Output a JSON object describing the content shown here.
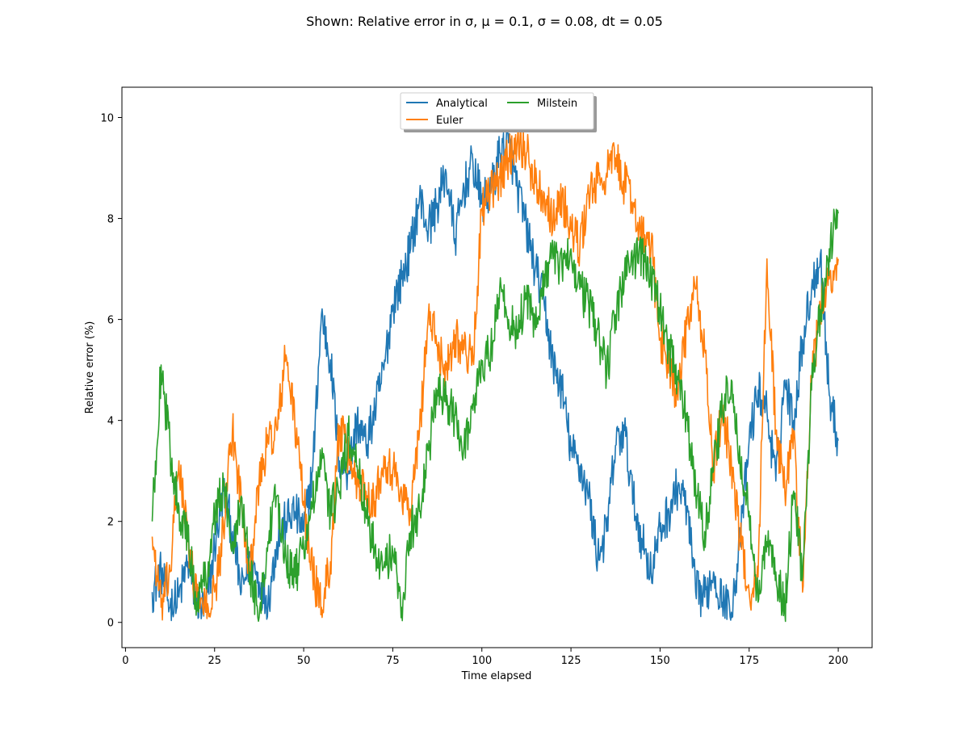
{
  "chart_data": {
    "type": "line",
    "title": "Shown: Relative error in σ, μ = 0.1, σ = 0.08, dt = 0.05",
    "xlabel": "Time elapsed",
    "ylabel": "Relative error (%)",
    "xlim": [
      -1.0,
      209.5
    ],
    "ylim": [
      -0.5,
      10.6
    ],
    "xticks": [
      0,
      25,
      50,
      75,
      100,
      125,
      150,
      175,
      200
    ],
    "yticks": [
      0,
      2,
      4,
      6,
      8,
      10
    ],
    "grid": false,
    "legend": {
      "placement": "upper-center",
      "columns": 2
    },
    "x": [
      7.5,
      10,
      12.5,
      15,
      17.5,
      20,
      22.5,
      25,
      27.5,
      30,
      32.5,
      35,
      37.5,
      40,
      42.5,
      45,
      47.5,
      50,
      52.5,
      55,
      57.5,
      60,
      62.5,
      65,
      67.5,
      70,
      72.5,
      75,
      77.5,
      80,
      82.5,
      85,
      87.5,
      90,
      92.5,
      95,
      97.5,
      100,
      102.5,
      105,
      107.5,
      110,
      112.5,
      115,
      117.5,
      120,
      122.5,
      125,
      127.5,
      130,
      132.5,
      135,
      137.5,
      140,
      142.5,
      145,
      147.5,
      150,
      152.5,
      155,
      157.5,
      160,
      162.5,
      165,
      167.5,
      170,
      172.5,
      175,
      177.5,
      180,
      182.5,
      185,
      187.5,
      190,
      192.5,
      195,
      197.5,
      200
    ],
    "series": [
      {
        "name": "Analytical",
        "color": "#1f77b4",
        "values": [
          0.6,
          1.0,
          0.3,
          0.5,
          1.2,
          0.4,
          0.2,
          1.5,
          2.6,
          1.8,
          0.6,
          1.3,
          0.8,
          0.4,
          1.6,
          2.0,
          2.2,
          1.8,
          3.0,
          6.1,
          5.2,
          3.2,
          3.0,
          4.0,
          3.5,
          4.2,
          5.0,
          6.3,
          6.8,
          7.4,
          8.4,
          7.8,
          8.3,
          8.9,
          7.6,
          8.6,
          9.1,
          8.3,
          8.5,
          9.3,
          9.5,
          8.6,
          7.8,
          7.0,
          6.3,
          5.1,
          4.6,
          3.4,
          3.1,
          2.5,
          1.3,
          1.8,
          3.5,
          3.8,
          2.4,
          1.6,
          1.0,
          1.8,
          2.2,
          2.7,
          2.3,
          0.6,
          0.5,
          1.0,
          0.4,
          0.2,
          1.6,
          3.6,
          4.6,
          4.2,
          2.8,
          4.8,
          4.0,
          5.6,
          6.6,
          7.3,
          4.5,
          3.6
        ]
      },
      {
        "name": "Euler",
        "color": "#ff7f0e",
        "values": [
          1.7,
          0.3,
          1.0,
          3.2,
          1.6,
          0.5,
          0.2,
          0.6,
          1.8,
          3.8,
          2.4,
          1.0,
          2.8,
          3.6,
          3.8,
          5.3,
          4.0,
          2.4,
          1.0,
          0.3,
          1.2,
          3.9,
          3.3,
          2.8,
          2.6,
          2.4,
          3.3,
          3.0,
          2.6,
          2.2,
          3.8,
          6.1,
          5.5,
          5.0,
          5.7,
          5.4,
          5.2,
          8.2,
          8.5,
          8.8,
          9.2,
          9.6,
          9.3,
          8.7,
          8.5,
          8.0,
          8.4,
          7.8,
          7.4,
          8.5,
          8.7,
          8.9,
          9.2,
          8.7,
          8.3,
          7.6,
          7.5,
          5.6,
          5.2,
          4.4,
          5.9,
          6.6,
          5.4,
          3.0,
          4.2,
          3.2,
          1.6,
          0.6,
          0.9,
          7.2,
          3.8,
          2.6,
          3.8,
          0.6,
          4.8,
          6.2,
          6.8,
          7.2
        ]
      },
      {
        "name": "Milstein",
        "color": "#2ca02c",
        "values": [
          2.0,
          5.1,
          3.4,
          2.3,
          1.6,
          0.4,
          0.9,
          2.1,
          2.7,
          1.6,
          2.5,
          1.0,
          0.1,
          1.6,
          2.5,
          1.3,
          0.9,
          1.5,
          2.3,
          3.2,
          2.2,
          2.6,
          3.7,
          3.1,
          2.1,
          1.5,
          1.1,
          1.4,
          0.3,
          1.8,
          2.2,
          3.4,
          4.6,
          4.3,
          4.1,
          3.5,
          4.2,
          5.1,
          5.4,
          6.6,
          6.0,
          5.8,
          6.4,
          5.8,
          6.9,
          7.2,
          7.0,
          7.4,
          6.6,
          6.3,
          5.8,
          4.9,
          6.1,
          6.9,
          7.2,
          7.3,
          6.8,
          6.2,
          5.4,
          4.8,
          4.0,
          2.6,
          1.8,
          3.0,
          4.2,
          4.8,
          3.0,
          2.2,
          0.4,
          1.6,
          1.0,
          0.2,
          2.6,
          0.9,
          4.6,
          6.2,
          7.4,
          8.1
        ]
      }
    ]
  }
}
